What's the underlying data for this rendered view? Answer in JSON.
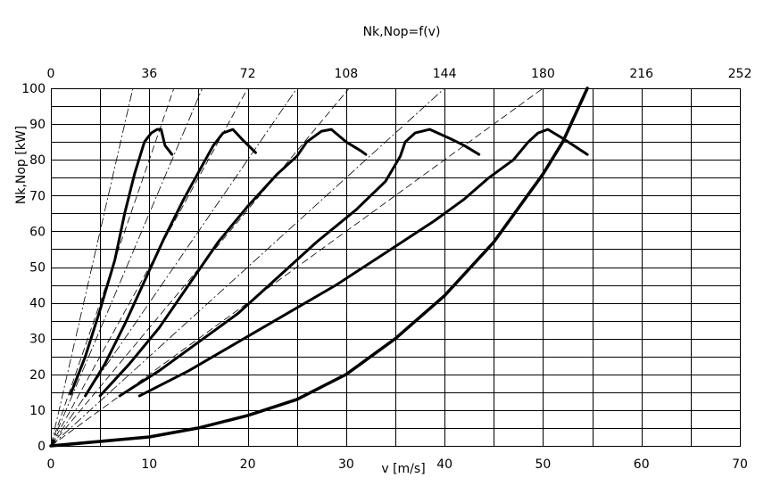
{
  "chart_data": {
    "type": "line",
    "title": "Nk,Nop=f(v)",
    "xlabel": "v [m/s]",
    "ylabel": "Nk,Nop [kW]",
    "xlim": [
      0,
      70
    ],
    "ylim": [
      0,
      100
    ],
    "x_ticks": [
      0,
      10,
      20,
      30,
      40,
      50,
      60,
      70
    ],
    "y_ticks": [
      0,
      10,
      20,
      30,
      40,
      50,
      60,
      70,
      80,
      90,
      100
    ],
    "top_axis_ticks": [
      0,
      36,
      72,
      108,
      144,
      180,
      216,
      252
    ],
    "grid": true,
    "grid_minor_x": 5,
    "grid_minor_y": 5,
    "traction_power_curves": [
      {
        "gear": 1,
        "points": [
          [
            2.0,
            14.5
          ],
          [
            3.5,
            25
          ],
          [
            5.0,
            38
          ],
          [
            6.5,
            52
          ],
          [
            7.5,
            65
          ],
          [
            8.5,
            76
          ],
          [
            9.5,
            85
          ],
          [
            10.2,
            87.5
          ],
          [
            10.8,
            88.5
          ],
          [
            11.2,
            88.5
          ],
          [
            11.6,
            84
          ],
          [
            12.3,
            81.5
          ]
        ]
      },
      {
        "gear": 2,
        "points": [
          [
            3.5,
            14
          ],
          [
            5.5,
            23
          ],
          [
            7.5,
            34
          ],
          [
            9.5,
            46
          ],
          [
            11.5,
            58
          ],
          [
            13.5,
            69
          ],
          [
            15.5,
            79
          ],
          [
            16.5,
            84
          ],
          [
            17.5,
            87.5
          ],
          [
            18.5,
            88.5
          ],
          [
            19.5,
            85.5
          ],
          [
            20.8,
            82
          ]
        ]
      },
      {
        "gear": 3,
        "points": [
          [
            5.0,
            14
          ],
          [
            8.0,
            23
          ],
          [
            11.0,
            33
          ],
          [
            14.0,
            45
          ],
          [
            17.0,
            57
          ],
          [
            20.0,
            67
          ],
          [
            23.0,
            76
          ],
          [
            25.0,
            81
          ],
          [
            26.0,
            85
          ],
          [
            27.5,
            88
          ],
          [
            28.5,
            88.5
          ],
          [
            30.0,
            85
          ],
          [
            31.5,
            82.5
          ],
          [
            32.0,
            81.5
          ]
        ]
      },
      {
        "gear": 4,
        "points": [
          [
            7.0,
            14
          ],
          [
            11.0,
            21
          ],
          [
            15.0,
            29
          ],
          [
            19.0,
            37
          ],
          [
            23.0,
            47
          ],
          [
            27.0,
            57
          ],
          [
            31.0,
            66
          ],
          [
            34.0,
            74
          ],
          [
            35.5,
            81
          ],
          [
            36.0,
            85
          ],
          [
            37.0,
            87.5
          ],
          [
            38.5,
            88.5
          ],
          [
            40.5,
            86
          ],
          [
            42.0,
            84
          ],
          [
            43.5,
            81.5
          ]
        ]
      },
      {
        "gear": 5,
        "points": [
          [
            9.0,
            14
          ],
          [
            14.0,
            21
          ],
          [
            19.0,
            29
          ],
          [
            24.0,
            37
          ],
          [
            29.0,
            45
          ],
          [
            34.0,
            54
          ],
          [
            39.0,
            63
          ],
          [
            42.0,
            69
          ],
          [
            44.5,
            75
          ],
          [
            47.0,
            80
          ],
          [
            48.5,
            85
          ],
          [
            49.5,
            87.5
          ],
          [
            50.5,
            88.5
          ],
          [
            52.0,
            86
          ],
          [
            54.5,
            81.5
          ]
        ]
      }
    ],
    "resistance_power_curve": [
      [
        0,
        0
      ],
      [
        10,
        2.5
      ],
      [
        15,
        5
      ],
      [
        20,
        8.5
      ],
      [
        25,
        13
      ],
      [
        30,
        20
      ],
      [
        35,
        30
      ],
      [
        40,
        42
      ],
      [
        45,
        57
      ],
      [
        50,
        76
      ],
      [
        52,
        85
      ],
      [
        54.5,
        100
      ]
    ],
    "reference_lines_slope": [
      12,
      8,
      6.5,
      5,
      4,
      3.3,
      2.5,
      2.0
    ]
  }
}
